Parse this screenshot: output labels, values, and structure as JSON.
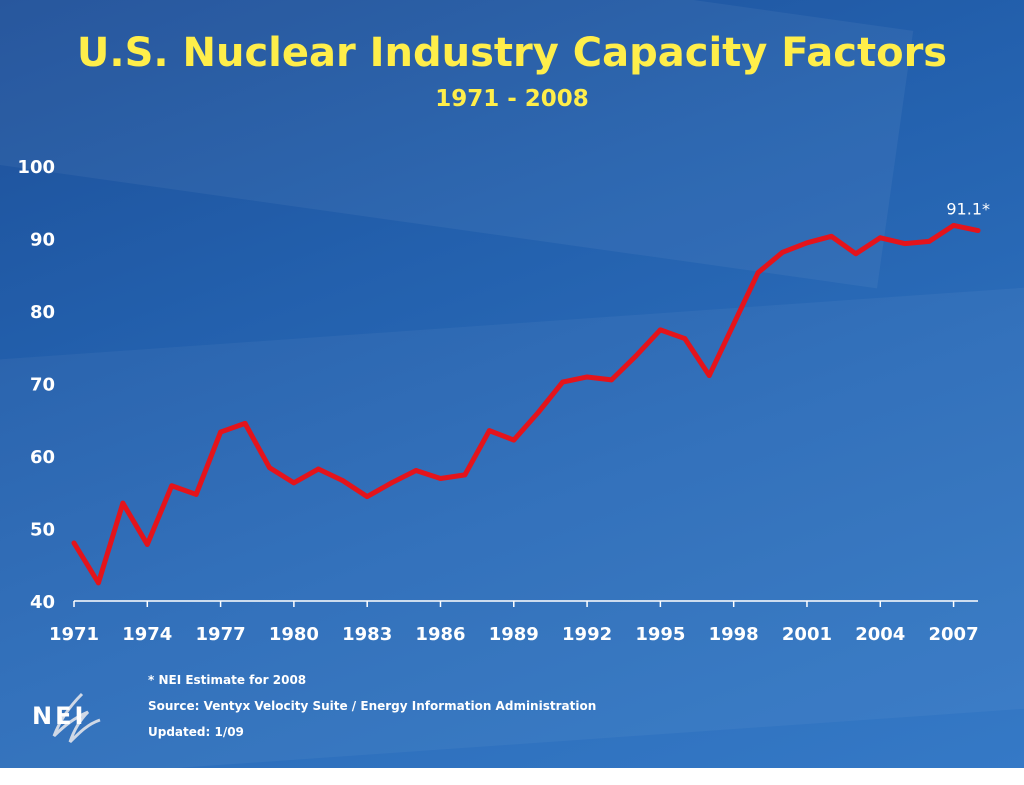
{
  "title": "U.S. Nuclear Industry Capacity Factors",
  "subtitle": "1971 - 2008",
  "logo_text": "NEI",
  "footnotes": {
    "estimate": "* NEI Estimate for 2008",
    "source": "Source: Ventyx Velocity Suite / Energy Information Administration",
    "updated": "Updated: 1/09"
  },
  "colors": {
    "title": "#ffee4a",
    "line": "#e4141b",
    "axis": "#ffffff",
    "background": "#2360ad"
  },
  "chart_data": {
    "type": "line",
    "title": "U.S. Nuclear Industry Capacity Factors",
    "subtitle": "1971 - 2008",
    "xlabel": "",
    "ylabel": "",
    "ylim": [
      40,
      100
    ],
    "yticks": [
      40,
      50,
      60,
      70,
      80,
      90,
      100
    ],
    "xticks": [
      1971,
      1974,
      1977,
      1980,
      1983,
      1986,
      1989,
      1992,
      1995,
      1998,
      2001,
      2004,
      2007
    ],
    "grid": false,
    "x": [
      1971,
      1972,
      1973,
      1974,
      1975,
      1976,
      1977,
      1978,
      1979,
      1980,
      1981,
      1982,
      1983,
      1984,
      1985,
      1986,
      1987,
      1988,
      1989,
      1990,
      1991,
      1992,
      1993,
      1994,
      1995,
      1996,
      1997,
      1998,
      1999,
      2000,
      2001,
      2002,
      2003,
      2004,
      2005,
      2006,
      2007,
      2008
    ],
    "series": [
      {
        "values": [
          48.0,
          42.5,
          53.5,
          47.8,
          55.9,
          54.7,
          63.3,
          64.5,
          58.4,
          56.3,
          58.2,
          56.6,
          54.4,
          56.3,
          58.0,
          56.9,
          57.4,
          63.5,
          62.2,
          66.0,
          70.2,
          70.9,
          70.5,
          73.8,
          77.4,
          76.2,
          71.1,
          78.2,
          85.3,
          88.1,
          89.4,
          90.3,
          87.9,
          90.1,
          89.3,
          89.6,
          91.8,
          91.1
        ]
      }
    ],
    "annotations": [
      {
        "x": 2008,
        "y": 91.1,
        "text": "91.1*"
      }
    ]
  }
}
